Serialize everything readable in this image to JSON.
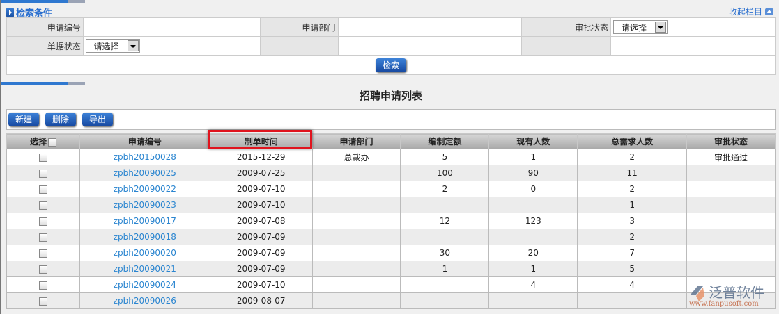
{
  "search": {
    "title": "检索条件",
    "collapse": "收起栏目",
    "fields": {
      "apply_no": "申请编号",
      "apply_dept": "申请部门",
      "approve_status": "审批状态",
      "doc_status": "单据状态"
    },
    "select_placeholder": "--请选择--",
    "search_btn": "检索"
  },
  "list": {
    "title": "招聘申请列表",
    "toolbar": {
      "new": "新建",
      "delete": "删除",
      "export": "导出"
    },
    "columns": [
      "选择",
      "申请编号",
      "制单时间",
      "申请部门",
      "编制定额",
      "现有人数",
      "总需求人数",
      "审批状态"
    ],
    "rows": [
      [
        "zpbh20150028",
        "2015-12-29",
        "总裁办",
        "5",
        "1",
        "2",
        "审批通过"
      ],
      [
        "zpbh20090025",
        "2009-07-25",
        "",
        "100",
        "90",
        "11",
        ""
      ],
      [
        "zpbh20090022",
        "2009-07-10",
        "",
        "2",
        "0",
        "2",
        ""
      ],
      [
        "zpbh20090023",
        "2009-07-10",
        "",
        "",
        "",
        "1",
        ""
      ],
      [
        "zpbh20090017",
        "2009-07-08",
        "",
        "12",
        "123",
        "3",
        ""
      ],
      [
        "zpbh20090018",
        "2009-07-09",
        "",
        "",
        "",
        "2",
        ""
      ],
      [
        "zpbh20090020",
        "2009-07-09",
        "",
        "30",
        "20",
        "7",
        ""
      ],
      [
        "zpbh20090021",
        "2009-07-09",
        "",
        "1",
        "1",
        "5",
        ""
      ],
      [
        "zpbh20090024",
        "2009-07-10",
        "",
        "",
        "4",
        "4",
        ""
      ],
      [
        "zpbh20090026",
        "2009-08-07",
        "",
        "",
        "",
        "",
        ""
      ]
    ]
  },
  "watermark": {
    "name": "泛普软件",
    "url": "www.fanpusoft.com"
  },
  "colors": {
    "accent": "#2f78d0",
    "highlight": "#e0141e",
    "link": "#2a85d0"
  }
}
